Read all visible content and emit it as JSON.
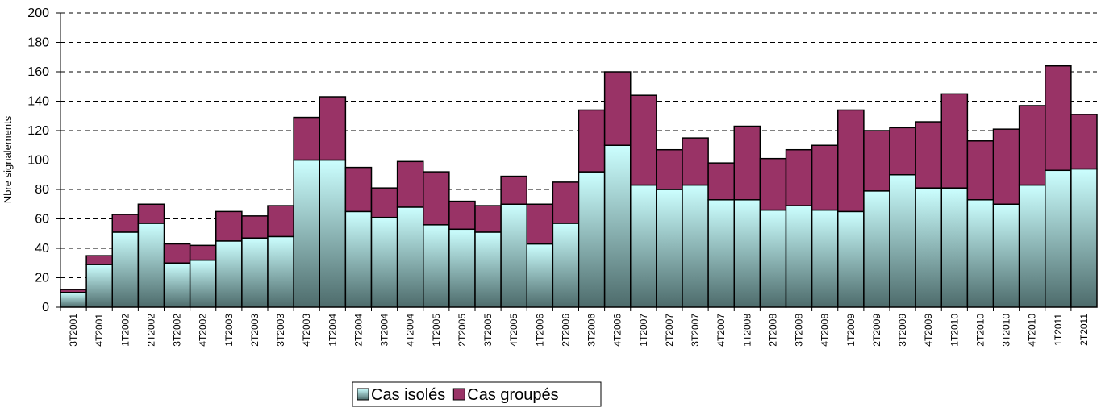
{
  "chart_data": {
    "type": "stacked_bar",
    "y_label": "Nbre signalements",
    "categories": [
      "3T2001",
      "4T2001",
      "1T2002",
      "2T2002",
      "3T2002",
      "4T2002",
      "1T2003",
      "2T2003",
      "3T2003",
      "4T2003",
      "1T2004",
      "2T2004",
      "3T2004",
      "4T2004",
      "1T2005",
      "2T2005",
      "3T2005",
      "4T2005",
      "1T2006",
      "2T2006",
      "3T2006",
      "4T2006",
      "1T2007",
      "2T2007",
      "3T2007",
      "4T2007",
      "1T2008",
      "2T2008",
      "3T2008",
      "4T2008",
      "1T2009",
      "2T2009",
      "3T2009",
      "4T2009",
      "1T2010",
      "2T2010",
      "3T2010",
      "4T2010",
      "1T2011",
      "2T2011"
    ],
    "series": [
      {
        "name": "Cas isolés",
        "color": "#ccffff",
        "values": [
          10,
          29,
          51,
          57,
          30,
          32,
          45,
          47,
          48,
          100,
          100,
          65,
          61,
          68,
          56,
          53,
          51,
          70,
          43,
          57,
          92,
          110,
          83,
          80,
          83,
          73,
          73,
          66,
          69,
          66,
          65,
          79,
          90,
          81,
          81,
          73,
          70,
          83,
          93,
          94
        ]
      },
      {
        "name": "Cas groupés",
        "color": "#993366",
        "values": [
          2,
          6,
          12,
          13,
          13,
          10,
          20,
          15,
          21,
          29,
          43,
          30,
          20,
          31,
          36,
          19,
          18,
          19,
          27,
          28,
          42,
          50,
          61,
          27,
          32,
          25,
          50,
          35,
          38,
          44,
          69,
          41,
          32,
          45,
          64,
          40,
          51,
          54,
          71,
          37
        ]
      }
    ],
    "ylim": [
      0,
      200
    ],
    "yticks": [
      0,
      20,
      40,
      60,
      80,
      100,
      120,
      140,
      160,
      180,
      200
    ],
    "grid": true,
    "legend": "bottom"
  }
}
